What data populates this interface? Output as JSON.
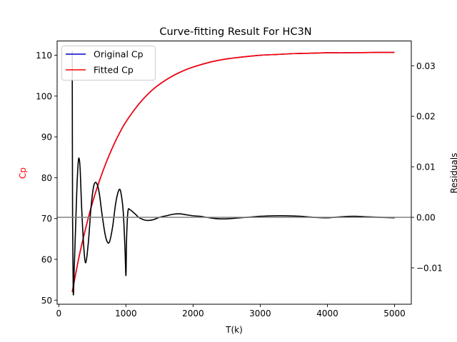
{
  "chart_data": {
    "type": "line",
    "title": "Curve-fitting Result For HC3N",
    "xlabel": "T(k)",
    "ylabel_left": "Cp",
    "ylabel_right": "Residuals",
    "xlim": [
      -25,
      5250
    ],
    "ylim_left": [
      49.0,
      113.5
    ],
    "ylim_right": [
      -0.0172,
      0.0349
    ],
    "x_ticks": [
      0,
      1000,
      2000,
      3000,
      4000,
      5000
    ],
    "x_tick_labels": [
      "0",
      "1000",
      "2000",
      "3000",
      "4000",
      "5000"
    ],
    "y_left_ticks": [
      50,
      60,
      70,
      80,
      90,
      100,
      110
    ],
    "y_left_tick_labels": [
      "50",
      "60",
      "70",
      "80",
      "90",
      "100",
      "110"
    ],
    "y_right_ticks": [
      -0.01,
      0.0,
      0.01,
      0.02,
      0.03
    ],
    "y_right_tick_labels": [
      "−0.01",
      "0.00",
      "0.01",
      "0.02",
      "0.03"
    ],
    "grid": false,
    "legend_position": "top-left",
    "series": [
      {
        "name": "Original Cp",
        "axis": "left",
        "color": "#0000cc",
        "x": [
          200,
          300,
          400,
          500,
          600,
          700,
          800,
          900,
          1000,
          1200,
          1400,
          1600,
          1800,
          2000,
          2250,
          2500,
          2750,
          3000,
          3250,
          3500,
          3750,
          4000,
          4250,
          4500,
          4750,
          5000
        ],
        "y": [
          52.0,
          60.5,
          67.6,
          73.8,
          79.0,
          83.5,
          87.4,
          90.8,
          93.7,
          98.2,
          101.6,
          104.0,
          105.8,
          107.1,
          108.3,
          109.1,
          109.6,
          110.0,
          110.2,
          110.4,
          110.5,
          110.6,
          110.6,
          110.65,
          110.7,
          110.7
        ]
      },
      {
        "name": "Fitted Cp",
        "axis": "left",
        "color": "#ff0000",
        "x": [
          200,
          300,
          400,
          500,
          600,
          700,
          800,
          900,
          1000,
          1200,
          1400,
          1600,
          1800,
          2000,
          2250,
          2500,
          2750,
          3000,
          3250,
          3500,
          3750,
          4000,
          4250,
          4500,
          4750,
          5000
        ],
        "y": [
          52.0,
          60.5,
          67.6,
          73.8,
          79.0,
          83.5,
          87.4,
          90.8,
          93.7,
          98.2,
          101.6,
          104.0,
          105.8,
          107.1,
          108.3,
          109.1,
          109.6,
          110.0,
          110.2,
          110.4,
          110.5,
          110.6,
          110.6,
          110.65,
          110.7,
          110.7
        ]
      },
      {
        "name": "Residuals",
        "axis": "right",
        "color": "#000000",
        "x": [
          200,
          205,
          215,
          230,
          250,
          270,
          290,
          305,
          320,
          340,
          370,
          400,
          440,
          480,
          520,
          560,
          600,
          650,
          700,
          750,
          800,
          850,
          900,
          930,
          960,
          985,
          1000,
          1010,
          1030,
          1060,
          1100,
          1150,
          1200,
          1300,
          1400,
          1500,
          1600,
          1700,
          1800,
          1900,
          2000,
          2100,
          2200,
          2300,
          2400,
          2500,
          2600,
          2700,
          2800,
          2900,
          3000,
          3200,
          3400,
          3600,
          3800,
          4000,
          4200,
          4400,
          4600,
          4800,
          5000
        ],
        "y": [
          0.033,
          0.0,
          -0.015,
          -0.01,
          -0.002,
          0.006,
          0.011,
          0.0115,
          0.009,
          0.002,
          -0.0055,
          -0.009,
          -0.005,
          0.002,
          0.0062,
          0.0068,
          0.005,
          0.0,
          -0.004,
          -0.005,
          -0.002,
          0.003,
          0.0055,
          0.0045,
          0.001,
          -0.006,
          -0.0115,
          -0.004,
          0.0012,
          0.0015,
          0.0011,
          0.0005,
          -0.0001,
          -0.0006,
          -0.0005,
          0.0,
          0.0003,
          0.0006,
          0.0007,
          0.0005,
          0.0003,
          0.0002,
          0.0,
          -0.0002,
          -0.0003,
          -0.0003,
          -0.0002,
          -0.0001,
          0.0,
          0.0001,
          0.0002,
          0.0003,
          0.0003,
          0.0002,
          0.0,
          -0.0001,
          0.0001,
          0.0002,
          0.0001,
          0.0,
          -0.0001
        ]
      }
    ],
    "reference_line": {
      "axis": "right",
      "y": 0.0,
      "color": "#808080"
    }
  }
}
